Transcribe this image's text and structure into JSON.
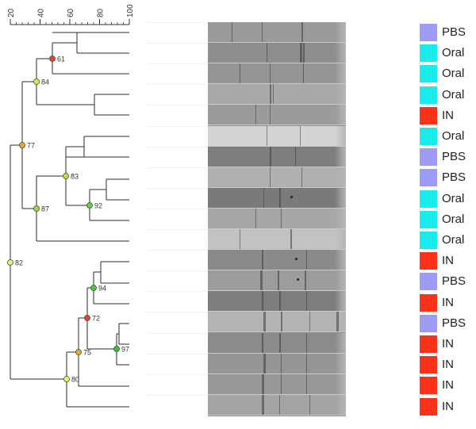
{
  "scale": {
    "ticks": [
      "20",
      "40",
      "60",
      "80",
      "100"
    ],
    "min": 20,
    "max": 100
  },
  "nodes": [
    {
      "label": "61",
      "color": "#e8402a"
    },
    {
      "label": "84",
      "color": "#d6ee3a"
    },
    {
      "label": "77",
      "color": "#f3a51e"
    },
    {
      "label": "83",
      "color": "#b6e63e"
    },
    {
      "label": "92",
      "color": "#62d13b"
    },
    {
      "label": "87",
      "color": "#9bdb3a"
    },
    {
      "label": "82",
      "color": "#ecf06a"
    },
    {
      "label": "94",
      "color": "#4cc93a"
    },
    {
      "label": "72",
      "color": "#e8402a"
    },
    {
      "label": "75",
      "color": "#f3a51e"
    },
    {
      "label": "97",
      "color": "#34c23a"
    },
    {
      "label": "80",
      "color": "#ecf06a"
    }
  ],
  "legend_colors": {
    "PBS": "#9c9cf4",
    "Oral": "#19ecec",
    "IN": "#fa3219"
  },
  "samples": [
    {
      "group": "PBS",
      "lane_shade": "#9a9a9a"
    },
    {
      "group": "Oral",
      "lane_shade": "#8e8e8e"
    },
    {
      "group": "Oral",
      "lane_shade": "#959595"
    },
    {
      "group": "Oral",
      "lane_shade": "#a8a8a8"
    },
    {
      "group": "IN",
      "lane_shade": "#9b9b9b"
    },
    {
      "group": "Oral",
      "lane_shade": "#d4d4d4"
    },
    {
      "group": "PBS",
      "lane_shade": "#7e7e7e"
    },
    {
      "group": "PBS",
      "lane_shade": "#b0b0b0"
    },
    {
      "group": "Oral",
      "lane_shade": "#7a7a7a"
    },
    {
      "group": "Oral",
      "lane_shade": "#a7a7a7"
    },
    {
      "group": "Oral",
      "lane_shade": "#c2c2c2"
    },
    {
      "group": "IN",
      "lane_shade": "#8a8a8a"
    },
    {
      "group": "PBS",
      "lane_shade": "#9c9c9c"
    },
    {
      "group": "IN",
      "lane_shade": "#7d7d7d"
    },
    {
      "group": "PBS",
      "lane_shade": "#b3b3b3"
    },
    {
      "group": "IN",
      "lane_shade": "#8b8b8b"
    },
    {
      "group": "IN",
      "lane_shade": "#959595"
    },
    {
      "group": "IN",
      "lane_shade": "#989898"
    },
    {
      "group": "IN",
      "lane_shade": "#a4a4a4"
    }
  ]
}
